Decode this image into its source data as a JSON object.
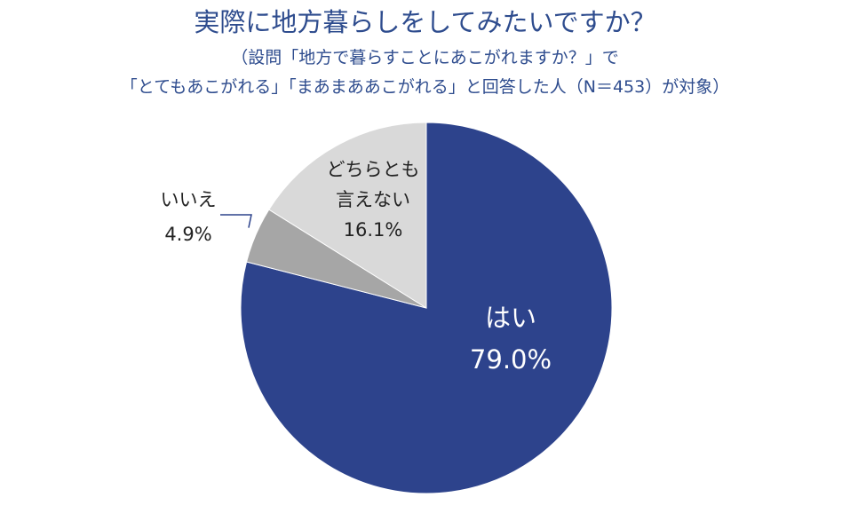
{
  "title": "実際に地方暮らしをしてみたいですか？",
  "subtitle_line1": "（設問「地方で暮らすことにあこがれますか？」で",
  "subtitle_line2": "「とてもあこがれる」「まあまああこがれる」と回答した人（N＝453）が対象）",
  "chart_data": {
    "type": "pie",
    "title": "実際に地方暮らしをしてみたいですか？",
    "slices": [
      {
        "label": "はい",
        "value": 79.0,
        "value_label": "79.0%",
        "color": "#2d438c",
        "text_color": "#ffffff"
      },
      {
        "label": "いいえ",
        "value": 4.9,
        "value_label": "4.9%",
        "color": "#a6a6a6",
        "text_color": "#222222"
      },
      {
        "label_lines": [
          "どちらとも",
          "言えない"
        ],
        "value": 16.1,
        "value_label": "16.1%",
        "color": "#d9d9d9",
        "text_color": "#222222"
      }
    ],
    "start": "12 o'clock",
    "direction": "clockwise",
    "legend": "none"
  }
}
